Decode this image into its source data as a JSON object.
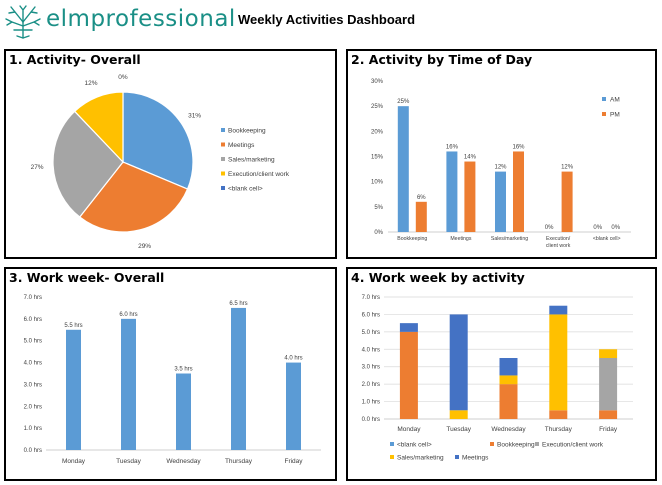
{
  "header": {
    "brand": "elmprofessional",
    "title": "Weekly Activities Dashboard",
    "logo_icon": "elm-tree-logo",
    "brand_color": "#1a8f86"
  },
  "colors": {
    "Bookkeeping": "#5b9bd5",
    "Meetings": "#ed7d31",
    "Sales/marketing": "#a5a5a5",
    "Execution/client work": "#ffc000",
    "<blank cell>": "#4472c4",
    "AM": "#5b9bd5",
    "PM": "#ed7d31",
    "stacked_blank": "#5b9bd5",
    "stacked_bookkeeping": "#ed7d31",
    "stacked_execution": "#a5a5a5",
    "stacked_sales": "#ffc000",
    "stacked_meetings": "#4472c4",
    "gridline": "#d9d9d9"
  },
  "panels": {
    "p1": {
      "title": "1. Activity- Overall"
    },
    "p2": {
      "title": "2. Activity by Time of Day"
    },
    "p3": {
      "title": "3. Work week- Overall"
    },
    "p4": {
      "title": "4. Work week by activity"
    }
  },
  "chart_data": [
    {
      "type": "pie",
      "title": "1. Activity- Overall",
      "categories": [
        "Bookkeeping",
        "Meetings",
        "Sales/marketing",
        "Execution/client work",
        "<blank cell>"
      ],
      "values": [
        31,
        29,
        27,
        12,
        0
      ],
      "data_labels": [
        "31%",
        "29%",
        "27%",
        "12%",
        "0%"
      ],
      "legend_position": "right"
    },
    {
      "type": "bar",
      "title": "2. Activity by Time of Day",
      "categories": [
        "Bookkeeping",
        "Meetings",
        "Sales/marketing",
        "Execution/client work",
        "<blank cell>"
      ],
      "series": [
        {
          "name": "AM",
          "values": [
            25,
            16,
            12,
            0,
            0
          ],
          "labels": [
            "25%",
            "16%",
            "12%",
            "0%",
            "0%"
          ]
        },
        {
          "name": "PM",
          "values": [
            6,
            14,
            16,
            12,
            0
          ],
          "labels": [
            "6%",
            "14%",
            "16%",
            "12%",
            "0%"
          ]
        }
      ],
      "yticks": [
        "0%",
        "5%",
        "10%",
        "15%",
        "20%",
        "25%",
        "30%"
      ],
      "ylim": [
        0,
        30
      ],
      "grid": false,
      "legend_position": "right"
    },
    {
      "type": "bar",
      "title": "3. Work week- Overall",
      "categories": [
        "Monday",
        "Tuesday",
        "Wednesday",
        "Thursday",
        "Friday"
      ],
      "values": [
        5.5,
        6.0,
        3.5,
        6.5,
        4.0
      ],
      "data_labels": [
        "5.5 hrs",
        "6.0 hrs",
        "3.5 hrs",
        "6.5 hrs",
        "4.0 hrs"
      ],
      "yticks": [
        "0.0 hrs",
        "1.0 hrs",
        "2.0 hrs",
        "3.0 hrs",
        "4.0 hrs",
        "5.0 hrs",
        "6.0 hrs",
        "7.0 hrs"
      ],
      "ylim": [
        0,
        7
      ],
      "grid": false
    },
    {
      "type": "bar",
      "stacked": true,
      "title": "4. Work week by activity",
      "categories": [
        "Monday",
        "Tuesday",
        "Wednesday",
        "Thursday",
        "Friday"
      ],
      "series": [
        {
          "name": "<blank cell>",
          "values": [
            0,
            0,
            0,
            0,
            0
          ]
        },
        {
          "name": "Bookkeeping",
          "values": [
            5.0,
            0,
            2.0,
            0.5,
            0.5
          ]
        },
        {
          "name": "Execution/client work",
          "values": [
            0,
            0,
            0,
            0,
            3.0
          ]
        },
        {
          "name": "Sales/marketing",
          "values": [
            0,
            0.5,
            0.5,
            5.5,
            0.5
          ]
        },
        {
          "name": "Meetings",
          "values": [
            0.5,
            5.5,
            1.0,
            0.5,
            0
          ]
        }
      ],
      "yticks": [
        "0.0 hrs",
        "1.0 hrs",
        "2.0 hrs",
        "3.0 hrs",
        "4.0 hrs",
        "5.0 hrs",
        "6.0 hrs",
        "7.0 hrs"
      ],
      "ylim": [
        0,
        7
      ],
      "grid": true,
      "legend_position": "bottom"
    }
  ]
}
